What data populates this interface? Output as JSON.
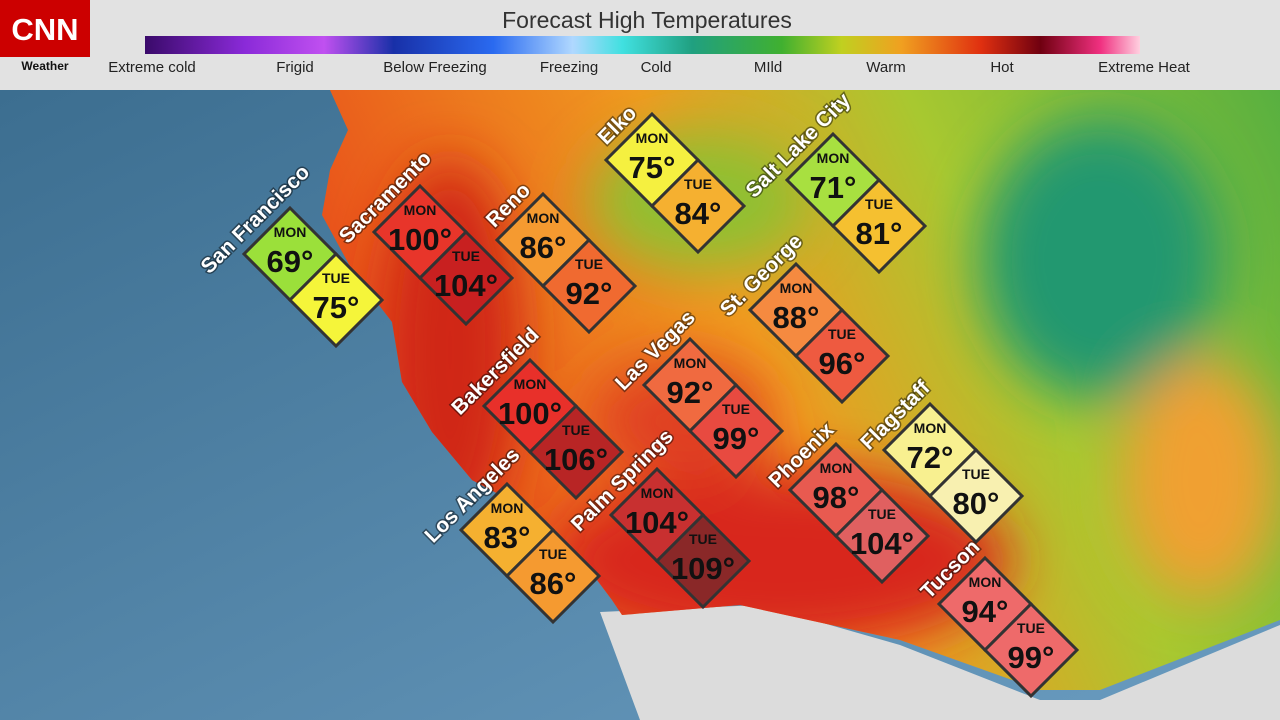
{
  "header": {
    "logo": "CNN",
    "logo_sub": "Weather",
    "title": "Forecast High Temperatures",
    "legend": [
      "Extreme cold",
      "Frigid",
      "Below Freezing",
      "Freezing",
      "Cold",
      "MIld",
      "Warm",
      "Hot",
      "Extreme Heat"
    ]
  },
  "days": [
    "MON",
    "TUE"
  ],
  "cities": [
    {
      "name": "San Francisco",
      "mon": "69°",
      "tue": "75°"
    },
    {
      "name": "Sacramento",
      "mon": "100°",
      "tue": "104°"
    },
    {
      "name": "Reno",
      "mon": "86°",
      "tue": "92°"
    },
    {
      "name": "Elko",
      "mon": "75°",
      "tue": "84°"
    },
    {
      "name": "Salt Lake City",
      "mon": "71°",
      "tue": "81°"
    },
    {
      "name": "St. George",
      "mon": "88°",
      "tue": "96°"
    },
    {
      "name": "Las Vegas",
      "mon": "92°",
      "tue": "99°"
    },
    {
      "name": "Bakersfield",
      "mon": "100°",
      "tue": "106°"
    },
    {
      "name": "Flagstaff",
      "mon": "72°",
      "tue": "80°"
    },
    {
      "name": "Phoenix",
      "mon": "98°",
      "tue": "104°"
    },
    {
      "name": "Los Angeles",
      "mon": "83°",
      "tue": "86°"
    },
    {
      "name": "Palm Springs",
      "mon": "104°",
      "tue": "109°"
    },
    {
      "name": "Tucson",
      "mon": "94°",
      "tue": "99°"
    }
  ]
}
